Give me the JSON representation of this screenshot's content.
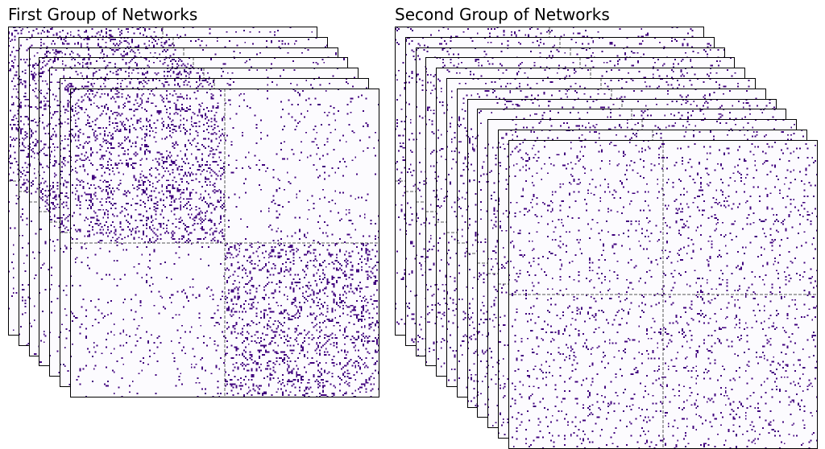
{
  "figure": {
    "panels": [
      {
        "id": "first",
        "title": "First Group of Networks",
        "layer_count": 7,
        "nodes": 200,
        "blocks": [
          0.5,
          0.5
        ],
        "block_edge_probability": {
          "within": 0.14,
          "between": 0.03
        }
      },
      {
        "id": "second",
        "title": "Second Group of Networks",
        "layer_count": 12,
        "nodes": 200,
        "blocks": [
          0.5,
          0.5
        ],
        "block_edge_probability": {
          "within": 0.05,
          "between": 0.05
        }
      }
    ],
    "colors": {
      "background": "#fcfbfe",
      "edge": "#3f007d",
      "frame": "#000000",
      "block_divider": "#555555"
    }
  }
}
